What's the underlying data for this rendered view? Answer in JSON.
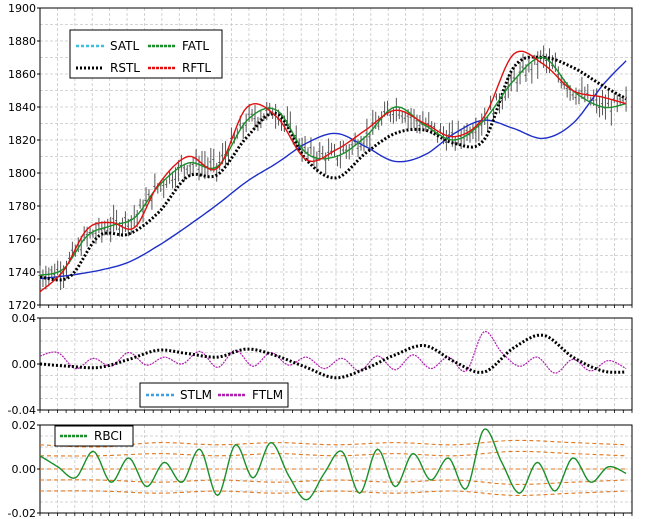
{
  "chart_data": [
    {
      "type": "line",
      "panel": "price",
      "ylim": [
        1720,
        1900
      ],
      "yticks": [
        "1720",
        "1740",
        "1760",
        "1780",
        "1800",
        "1820",
        "1840",
        "1860",
        "1880",
        "1900"
      ],
      "legend": {
        "placement": "top-left",
        "entries": [
          "SATL",
          "FATL",
          "RSTL",
          "RFTL"
        ]
      },
      "grid": true,
      "n_bars": 200,
      "colors": {
        "SATL": "#1e2fc8",
        "FATL": "#1a8f2a",
        "RSTL": "#000000",
        "RFTL": "#e01010",
        "bars": "#555555"
      },
      "series": [
        {
          "name": "SATL",
          "x": [
            0,
            10,
            20,
            30,
            40,
            50,
            60,
            70,
            80,
            90,
            100,
            110,
            120,
            130,
            140,
            150,
            160,
            170,
            180,
            190,
            198
          ],
          "y": [
            1736,
            1738,
            1741,
            1746,
            1756,
            1768,
            1781,
            1795,
            1806,
            1818,
            1824,
            1816,
            1807,
            1811,
            1824,
            1832,
            1827,
            1821,
            1830,
            1853,
            1868
          ]
        },
        {
          "name": "FATL",
          "x": [
            0,
            8,
            16,
            24,
            32,
            40,
            50,
            60,
            70,
            80,
            90,
            100,
            110,
            120,
            130,
            140,
            150,
            160,
            170,
            180,
            190,
            198
          ],
          "y": [
            1738,
            1742,
            1762,
            1768,
            1773,
            1792,
            1806,
            1804,
            1832,
            1838,
            1812,
            1810,
            1822,
            1840,
            1829,
            1820,
            1832,
            1856,
            1870,
            1850,
            1840,
            1842
          ]
        },
        {
          "name": "RSTL",
          "x": [
            0,
            10,
            20,
            30,
            40,
            50,
            60,
            70,
            80,
            90,
            100,
            110,
            120,
            130,
            140,
            150,
            160,
            170,
            180,
            190,
            198
          ],
          "y": [
            1737,
            1737,
            1762,
            1763,
            1776,
            1798,
            1799,
            1822,
            1836,
            1808,
            1797,
            1812,
            1824,
            1826,
            1818,
            1820,
            1864,
            1870,
            1864,
            1853,
            1845
          ]
        },
        {
          "name": "RFTL",
          "x": [
            0,
            8,
            16,
            24,
            32,
            40,
            50,
            60,
            70,
            80,
            90,
            100,
            110,
            120,
            130,
            140,
            150,
            160,
            170,
            180,
            190,
            198
          ],
          "y": [
            1728,
            1741,
            1766,
            1770,
            1767,
            1793,
            1810,
            1803,
            1840,
            1834,
            1808,
            1814,
            1826,
            1838,
            1830,
            1822,
            1834,
            1872,
            1866,
            1850,
            1846,
            1842
          ]
        }
      ]
    },
    {
      "type": "line",
      "panel": "momentum",
      "ylim": [
        -0.04,
        0.04
      ],
      "yticks": [
        "-0.04",
        "0.00",
        "0.04"
      ],
      "legend": {
        "placement": "bottom-center",
        "entries": [
          "STLM",
          "FTLM"
        ]
      },
      "grid": true,
      "colors": {
        "STLM": "#000000",
        "FTLM": "#b020b0"
      },
      "series": [
        {
          "name": "STLM",
          "x": [
            0,
            10,
            20,
            30,
            40,
            50,
            60,
            70,
            80,
            90,
            100,
            110,
            120,
            130,
            140,
            150,
            160,
            170,
            180,
            190,
            198
          ],
          "y": [
            0.0,
            -0.002,
            -0.003,
            0.004,
            0.012,
            0.009,
            0.006,
            0.013,
            0.007,
            -0.003,
            -0.012,
            -0.004,
            0.008,
            0.016,
            0.002,
            -0.007,
            0.014,
            0.025,
            0.006,
            -0.006,
            -0.007
          ]
        },
        {
          "name": "FTLM",
          "x": [
            0,
            6,
            12,
            18,
            24,
            30,
            36,
            42,
            48,
            54,
            60,
            66,
            72,
            78,
            84,
            90,
            96,
            102,
            108,
            114,
            120,
            126,
            132,
            138,
            144,
            150,
            156,
            162,
            168,
            174,
            180,
            186,
            192,
            198
          ],
          "y": [
            0.007,
            0.01,
            -0.004,
            0.005,
            -0.002,
            0.01,
            -0.001,
            0.006,
            0.0,
            0.011,
            -0.003,
            0.012,
            -0.002,
            0.01,
            -0.001,
            0.006,
            -0.004,
            0.005,
            -0.006,
            0.007,
            -0.005,
            0.008,
            -0.004,
            0.006,
            -0.006,
            0.028,
            0.01,
            -0.002,
            0.006,
            -0.008,
            0.004,
            -0.006,
            0.003,
            -0.004
          ]
        }
      ]
    },
    {
      "type": "line",
      "panel": "rbci",
      "ylim": [
        -0.02,
        0.02
      ],
      "yticks": [
        "-0.02",
        "0.00",
        "0.02"
      ],
      "legend": {
        "placement": "top-left",
        "entries": [
          "RBCI"
        ]
      },
      "grid": true,
      "colors": {
        "RBCI": "#1a8f2a",
        "bands": "#e07820"
      },
      "series": [
        {
          "name": "RBCI",
          "x": [
            0,
            6,
            12,
            18,
            24,
            30,
            36,
            42,
            48,
            54,
            60,
            66,
            72,
            78,
            84,
            90,
            96,
            102,
            108,
            114,
            120,
            126,
            132,
            138,
            144,
            150,
            156,
            162,
            168,
            174,
            180,
            186,
            192,
            198
          ],
          "y": [
            0.006,
            0.001,
            -0.004,
            0.008,
            -0.006,
            0.005,
            -0.008,
            0.003,
            -0.006,
            0.009,
            -0.012,
            0.011,
            -0.004,
            0.012,
            -0.003,
            -0.014,
            -0.002,
            0.008,
            -0.011,
            0.009,
            -0.008,
            0.007,
            -0.005,
            0.005,
            -0.009,
            0.018,
            0.003,
            -0.011,
            0.003,
            -0.01,
            0.005,
            -0.006,
            0.001,
            -0.002
          ]
        },
        {
          "name": "band-upper-2",
          "x": [
            0,
            20,
            40,
            60,
            80,
            100,
            120,
            140,
            160,
            180,
            198
          ],
          "y": [
            0.011,
            0.01,
            0.012,
            0.011,
            0.012,
            0.011,
            0.012,
            0.011,
            0.013,
            0.012,
            0.011
          ]
        },
        {
          "name": "band-upper-1",
          "x": [
            0,
            20,
            40,
            60,
            80,
            100,
            120,
            140,
            160,
            180,
            198
          ],
          "y": [
            0.006,
            0.006,
            0.007,
            0.006,
            0.007,
            0.006,
            0.007,
            0.006,
            0.008,
            0.007,
            0.006
          ]
        },
        {
          "name": "band-mid",
          "x": [
            0,
            20,
            40,
            60,
            80,
            100,
            120,
            140,
            160,
            180,
            198
          ],
          "y": [
            0.0,
            0.0,
            0.0,
            0.0,
            0.0,
            0.0,
            0.0,
            0.0,
            0.0,
            0.0,
            0.0
          ]
        },
        {
          "name": "band-lower-1",
          "x": [
            0,
            20,
            40,
            60,
            80,
            100,
            120,
            140,
            160,
            180,
            198
          ],
          "y": [
            -0.005,
            -0.005,
            -0.006,
            -0.005,
            -0.006,
            -0.005,
            -0.006,
            -0.005,
            -0.007,
            -0.006,
            -0.005
          ]
        },
        {
          "name": "band-lower-2",
          "x": [
            0,
            20,
            40,
            60,
            80,
            100,
            120,
            140,
            160,
            180,
            198
          ],
          "y": [
            -0.01,
            -0.01,
            -0.011,
            -0.01,
            -0.011,
            -0.01,
            -0.011,
            -0.01,
            -0.012,
            -0.011,
            -0.01
          ]
        }
      ]
    }
  ]
}
